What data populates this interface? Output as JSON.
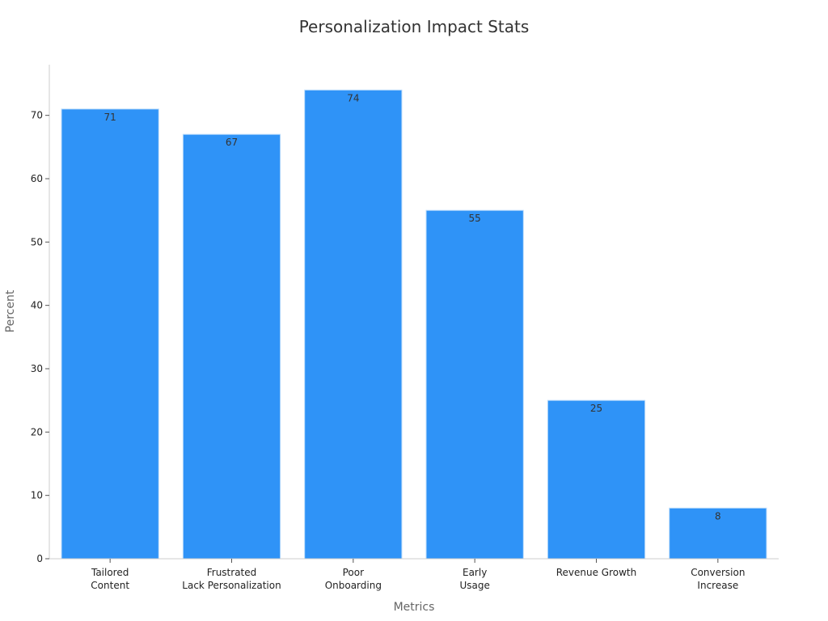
{
  "chart_data": {
    "type": "bar",
    "title": "Personalization Impact Stats",
    "xlabel": "Metrics",
    "ylabel": "Percent",
    "categories": [
      [
        "Tailored",
        "Content"
      ],
      [
        "Frustrated",
        "Lack Personalization"
      ],
      [
        "Poor",
        "Onboarding"
      ],
      [
        "Early",
        "Usage"
      ],
      [
        "Revenue Growth"
      ],
      [
        "Conversion",
        "Increase"
      ]
    ],
    "values": [
      71,
      67,
      74,
      55,
      25,
      8
    ],
    "ylim": [
      0,
      78
    ],
    "yticks": [
      0,
      10,
      20,
      30,
      40,
      50,
      60,
      70
    ],
    "grid": false,
    "bar_color": "#2f93f7"
  }
}
